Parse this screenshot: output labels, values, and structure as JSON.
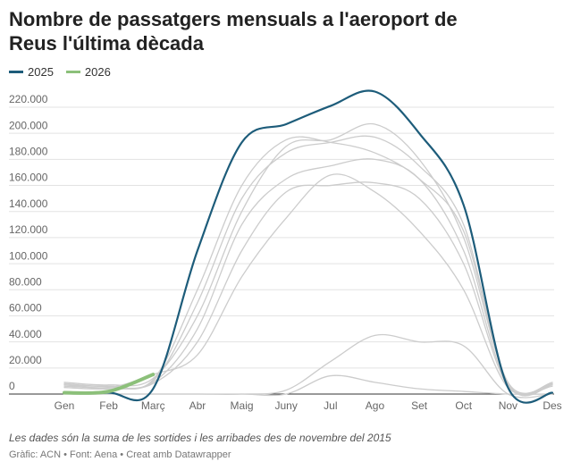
{
  "chart_data": {
    "type": "line",
    "title": "Nombre de passatgers mensuals a l'aeroport de Reus l'última dècada",
    "note": "Les dades són la suma de les sortides i les arribades des de novembre del 2015",
    "source": "Gràfic: ACN • Font: Aena • Creat amb Datawrapper",
    "categories": [
      "Gen",
      "Feb",
      "Març",
      "Abr",
      "Maig",
      "Juny",
      "Jul",
      "Ago",
      "Set",
      "Oct",
      "Nov",
      "Des"
    ],
    "ylim": [
      0,
      220000
    ],
    "yticks": [
      0,
      {
        "value": 20000,
        "label": "20.000"
      },
      {
        "value": 40000,
        "label": "40.000"
      },
      {
        "value": 60000,
        "label": "60.000"
      },
      {
        "value": 80000,
        "label": "80.000"
      },
      {
        "value": 100000,
        "label": "100.000"
      },
      {
        "value": 120000,
        "label": "120.000"
      },
      {
        "value": 140000,
        "label": "140.000"
      },
      {
        "value": 160000,
        "label": "160.000"
      },
      {
        "value": 180000,
        "label": "180.000"
      },
      {
        "value": 200000,
        "label": "200.000"
      },
      {
        "value": 220000,
        "label": "220.000"
      }
    ],
    "grid": true,
    "series": [
      {
        "color": "#cccccc",
        "values": [
          9000,
          7000,
          12000,
          60000,
          140000,
          190000,
          195000,
          207000,
          180000,
          120000,
          9000,
          8000
        ]
      },
      {
        "color": "#cccccc",
        "values": [
          7000,
          6000,
          10000,
          70000,
          150000,
          185000,
          193000,
          197000,
          175000,
          130000,
          8000,
          7000
        ]
      },
      {
        "color": "#cccccc",
        "values": [
          6000,
          5000,
          9000,
          50000,
          130000,
          165000,
          175000,
          180000,
          165000,
          110000,
          7000,
          9000
        ]
      },
      {
        "color": "#cccccc",
        "values": [
          5000,
          4000,
          8000,
          40000,
          110000,
          155000,
          160000,
          162000,
          150000,
          100000,
          6000,
          8000
        ]
      },
      {
        "color": "#cccccc",
        "values": [
          8000,
          6000,
          11000,
          80000,
          160000,
          195000,
          193000,
          185000,
          165000,
          125000,
          8000,
          7000
        ]
      },
      {
        "color": "#cccccc",
        "values": [
          7000,
          5000,
          15000,
          30000,
          90000,
          135000,
          168000,
          155000,
          125000,
          80000,
          5000,
          6000
        ]
      },
      {
        "color": "#cccccc",
        "values": [
          0,
          0,
          0,
          0,
          0,
          3000,
          25000,
          45000,
          40000,
          37000,
          0,
          0
        ]
      },
      {
        "color": "#cccccc",
        "values": [
          0,
          0,
          0,
          0,
          0,
          0,
          14000,
          9000,
          4000,
          2000,
          0,
          0
        ]
      },
      {
        "name": "2025",
        "color": "#1d5c7a",
        "values": [
          1000,
          1000,
          4000,
          110000,
          193000,
          207000,
          221000,
          232000,
          200000,
          145000,
          5000,
          1000
        ]
      },
      {
        "name": "2026",
        "color": "#8cc07a",
        "values": [
          1000,
          2000,
          15000,
          null,
          null,
          null,
          null,
          null,
          null,
          null,
          null,
          null
        ]
      }
    ]
  }
}
